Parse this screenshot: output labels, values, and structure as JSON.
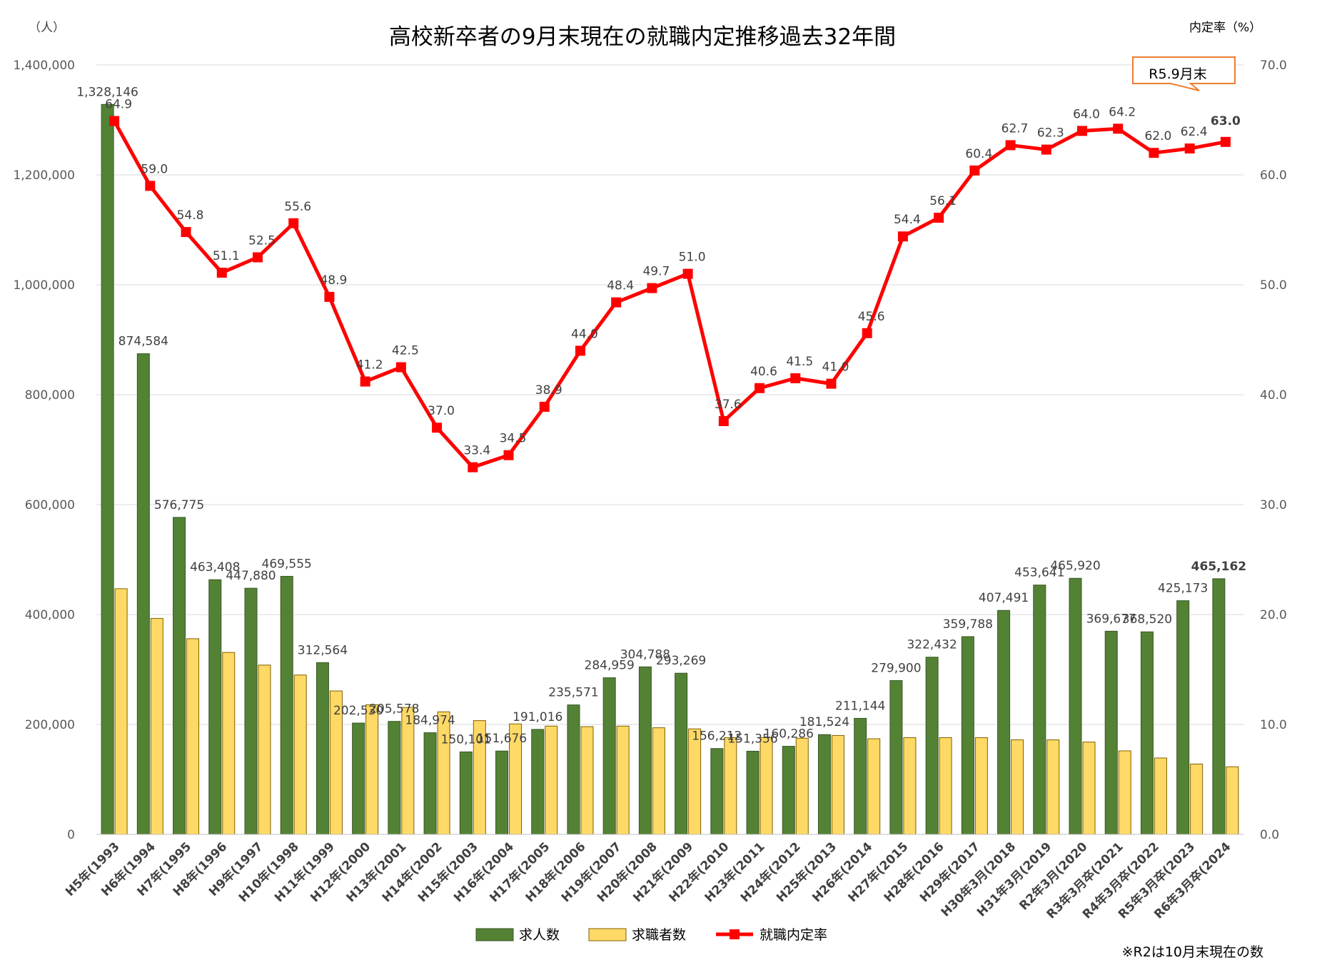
{
  "chart_data": {
    "type": "bar",
    "title": "高校新卒者の9月末現在の就職内定推移過去32年間",
    "ylabel_left": "（人）",
    "ylabel_right": "内定率（%）",
    "ylim_left": [
      0,
      1400000
    ],
    "ylim_right": [
      0,
      70
    ],
    "yticks_left": [
      "0",
      "200,000",
      "400,000",
      "600,000",
      "800,000",
      "1,000,000",
      "1,200,000",
      "1,400,000"
    ],
    "yticks_right": [
      "0.0",
      "10.0",
      "20.0",
      "30.0",
      "40.0",
      "50.0",
      "60.0",
      "70.0"
    ],
    "grid": true,
    "legend_position": "bottom",
    "categories": [
      "H5年(1993",
      "H6年(1994",
      "H7年(1995",
      "H8年(1996",
      "H9年(1997",
      "H10年(1998",
      "H11年(1999",
      "H12年(2000",
      "H13年(2001",
      "H14年(2002",
      "H15年(2003",
      "H16年(2004",
      "H17年(2005",
      "H18年(2006",
      "H19年(2007",
      "H20年(2008",
      "H21年(2009",
      "H22年(2010",
      "H23年(2011",
      "H24年(2012",
      "H25年(2013",
      "H26年(2014",
      "H27年(2015",
      "H28年(2016",
      "H29年(2017",
      "H30年3月(2018",
      "H31年3月(2019",
      "R2年3月(2020",
      "R3年3月卒(2021",
      "R4年3月卒(2022",
      "R5年3月卒(2023",
      "R6年3月卒(2024"
    ],
    "series": [
      {
        "name": "求人数",
        "axis": "left",
        "color": "#548235",
        "values": [
          1328146,
          874584,
          576775,
          463408,
          447880,
          469555,
          312564,
          202530,
          205578,
          184974,
          150101,
          151676,
          191016,
          235571,
          284959,
          304788,
          293269,
          156212,
          151356,
          160286,
          181524,
          211144,
          279900,
          322432,
          359788,
          407491,
          453641,
          465920,
          369677,
          368520,
          425173,
          465162
        ],
        "labels": [
          "1,328,146",
          "874,584",
          "576,775",
          "463,408",
          "447,880",
          "469,555",
          "312,564",
          "202,530",
          "205,578",
          "184,974",
          "150,101",
          "151,676",
          "191,016",
          "235,571",
          "284,959",
          "304,788",
          "293,269",
          "156,212",
          "151,356",
          "160,286",
          "181,524",
          "211,144",
          "279,900",
          "322,432",
          "359,788",
          "407,491",
          "453,641",
          "465,920",
          "369,677",
          "368,520",
          "425,173",
          "465,162"
        ]
      },
      {
        "name": "求職者数",
        "axis": "left",
        "color": "#FFD966",
        "values": [
          447000,
          393000,
          356000,
          331000,
          308000,
          290000,
          261000,
          236000,
          231000,
          223000,
          207000,
          201000,
          197000,
          196000,
          197000,
          194000,
          192000,
          176000,
          176000,
          175000,
          180000,
          174000,
          176000,
          176000,
          176000,
          172000,
          172000,
          168000,
          152000,
          139000,
          128000,
          123000
        ]
      },
      {
        "name": "就職内定率",
        "axis": "right",
        "color": "#FF0000",
        "values": [
          64.9,
          59.0,
          54.8,
          51.1,
          52.5,
          55.6,
          48.9,
          41.2,
          42.5,
          37.0,
          33.4,
          34.5,
          38.9,
          44.0,
          48.4,
          49.7,
          51.0,
          37.6,
          40.6,
          41.5,
          41.0,
          45.6,
          54.4,
          56.1,
          60.4,
          62.7,
          62.3,
          64.0,
          64.2,
          62.0,
          62.4,
          63.0
        ],
        "labels": [
          "64.9",
          "59.0",
          "54.8",
          "51.1",
          "52.5",
          "55.6",
          "48.9",
          "41.2",
          "42.5",
          "37.0",
          "33.4",
          "34.5",
          "38.9",
          "44.0",
          "48.4",
          "49.7",
          "51.0",
          "37.6",
          "40.6",
          "41.5",
          "41.0",
          "45.6",
          "54.4",
          "56.1",
          "60.4",
          "62.7",
          "62.3",
          "64.0",
          "64.2",
          "62.0",
          "62.4",
          "63.0"
        ]
      }
    ],
    "callout": "R5.9月末",
    "note": "※R2は10月末現在の数",
    "highlight_color": "#FF0000",
    "callout_border_color": "#ED7D31"
  }
}
